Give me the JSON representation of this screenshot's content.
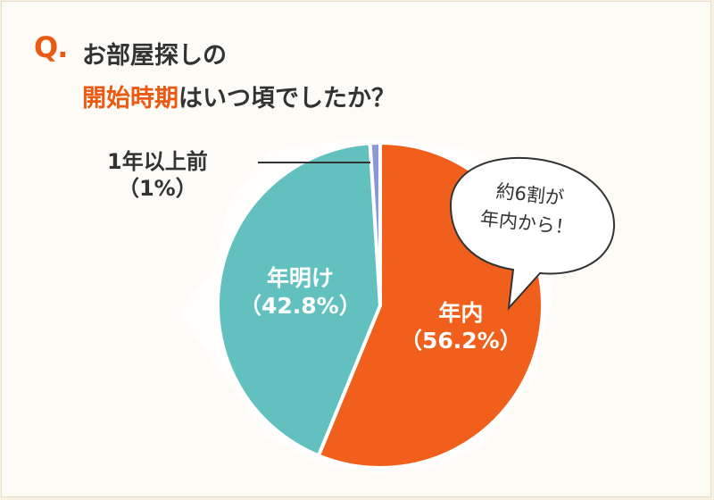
{
  "header": {
    "q_mark": "Q.",
    "line1": "お部屋探しの",
    "line2_highlight": "開始時期",
    "line2_rest": "はいつ頃でしたか？"
  },
  "colors": {
    "accent": "#ea5a12",
    "slice_within_year": "#f0601c",
    "slice_new_year": "#62c0bf",
    "slice_over_year": "#8c97d4"
  },
  "chart_data": {
    "type": "pie",
    "slices": [
      {
        "label": "年内",
        "value_label": "（56.2%）",
        "value": 56.2
      },
      {
        "label": "年明け",
        "value_label": "（42.8%）",
        "value": 42.8
      },
      {
        "label": "1年以上前",
        "value_label": "（1%）",
        "value": 1
      }
    ],
    "annotation": {
      "line1": "約6割が",
      "line2": "年内から！"
    }
  }
}
